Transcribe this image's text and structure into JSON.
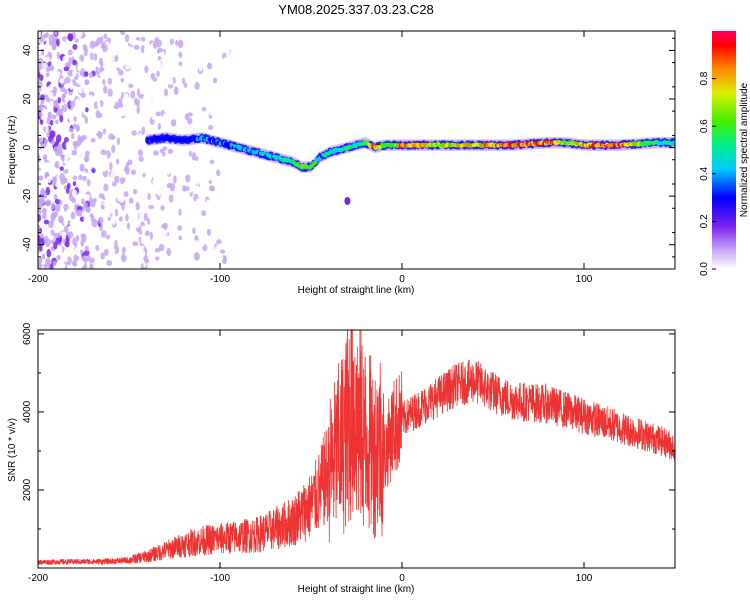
{
  "title": "YM08.2025.337.03.23.C28",
  "chart_data": [
    {
      "type": "heatmap",
      "name": "spectrogram",
      "xlabel": "Height of straight line (km)",
      "ylabel": "Frequency (Hz)",
      "xlim": [
        -200,
        150
      ],
      "ylim": [
        -50,
        48
      ],
      "xticks": [
        "-200",
        "-100",
        "0",
        "100"
      ],
      "xtick_values": [
        -200,
        -100,
        0,
        100
      ],
      "yticks": [
        "-40",
        "-20",
        "0",
        "20",
        "40"
      ],
      "ytick_values": [
        -40,
        -20,
        0,
        20,
        40
      ],
      "colorbar": {
        "label": "Normalized spectral amplitude",
        "ticks": [
          "0.0",
          "0.2",
          "0.4",
          "0.6",
          "0.8"
        ],
        "tick_values": [
          0.0,
          0.2,
          0.4,
          0.6,
          0.8
        ],
        "range": [
          0,
          1
        ]
      },
      "ridge": {
        "x": [
          -140,
          -130,
          -120,
          -110,
          -100,
          -90,
          -80,
          -70,
          -60,
          -55,
          -50,
          -45,
          -40,
          -35,
          -30,
          -25,
          -20,
          -15,
          -10,
          -5,
          0,
          20,
          40,
          60,
          80,
          90,
          100,
          120,
          140,
          150
        ],
        "frequency_hz": [
          3,
          4,
          3,
          4,
          2,
          0,
          -2,
          -4,
          -6,
          -8,
          -8,
          -4,
          -2,
          -1,
          0,
          1,
          2,
          0,
          1,
          1,
          1,
          1,
          1,
          1,
          2,
          2,
          1,
          1,
          2,
          2
        ],
        "amplitude": [
          0.35,
          0.4,
          0.35,
          0.45,
          0.4,
          0.45,
          0.5,
          0.5,
          0.6,
          0.75,
          0.7,
          0.5,
          0.55,
          0.55,
          0.6,
          0.55,
          0.65,
          0.95,
          0.7,
          0.6,
          0.95,
          0.75,
          0.85,
          0.95,
          0.95,
          0.7,
          0.95,
          0.95,
          0.6,
          0.55
        ]
      },
      "stray_blob": {
        "x": -30,
        "frequency_hz": -22
      }
    },
    {
      "type": "line",
      "name": "snr",
      "xlabel": "Height of straight line (km)",
      "ylabel": "SNR (10 * v/v)",
      "color": "#ee3333",
      "xlim": [
        -200,
        150
      ],
      "ylim": [
        0,
        6100
      ],
      "xticks": [
        "-200",
        "-100",
        "0",
        "100"
      ],
      "xtick_values": [
        -200,
        -100,
        0,
        100
      ],
      "yticks": [
        "2000",
        "4000",
        "6000"
      ],
      "ytick_values": [
        2000,
        4000,
        6000
      ],
      "x": [
        -200,
        -180,
        -160,
        -150,
        -140,
        -130,
        -120,
        -110,
        -100,
        -90,
        -80,
        -70,
        -60,
        -50,
        -45,
        -40,
        -35,
        -30,
        -28,
        -25,
        -20,
        -15,
        -12,
        -10,
        -5,
        0,
        10,
        20,
        30,
        40,
        50,
        60,
        80,
        100,
        120,
        140,
        150
      ],
      "y": [
        150,
        160,
        170,
        200,
        300,
        450,
        600,
        700,
        750,
        800,
        850,
        1000,
        1200,
        1600,
        2000,
        2500,
        3000,
        3500,
        4500,
        3800,
        3300,
        3000,
        3300,
        2800,
        3600,
        3800,
        4100,
        4400,
        4700,
        4800,
        4500,
        4300,
        4200,
        3900,
        3600,
        3300,
        3100
      ],
      "spikes": [
        {
          "x": -30,
          "y": 6100
        },
        {
          "x": -27,
          "y": 5300
        },
        {
          "x": -25,
          "y": 5200
        },
        {
          "x": -20,
          "y": 4900
        },
        {
          "x": -12,
          "y": 4700
        }
      ]
    }
  ]
}
